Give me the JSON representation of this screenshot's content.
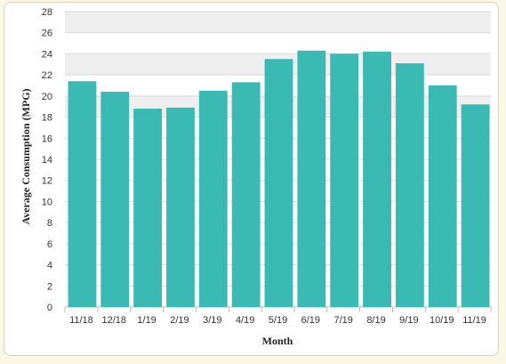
{
  "chart_data": {
    "type": "bar",
    "title": "",
    "xlabel": "Month",
    "ylabel": "Average Consumption (MPG)",
    "categories": [
      "11/18",
      "12/18",
      "1/19",
      "2/19",
      "3/19",
      "4/19",
      "5/19",
      "6/19",
      "7/19",
      "8/19",
      "9/19",
      "10/19",
      "11/19"
    ],
    "values": [
      21.4,
      20.4,
      18.8,
      18.9,
      20.5,
      21.3,
      23.5,
      24.3,
      24.0,
      24.2,
      23.1,
      21.0,
      19.2
    ],
    "ylim": [
      0,
      28
    ],
    "yticks": [
      0,
      2,
      4,
      6,
      8,
      10,
      12,
      14,
      16,
      18,
      20,
      22,
      24,
      26,
      28
    ],
    "grid": true,
    "legend": "none",
    "colors": {
      "bar": "#3bb9b3",
      "band": "#efefef",
      "grid": "#d9d9d9",
      "background": "#fbf8e8"
    }
  }
}
